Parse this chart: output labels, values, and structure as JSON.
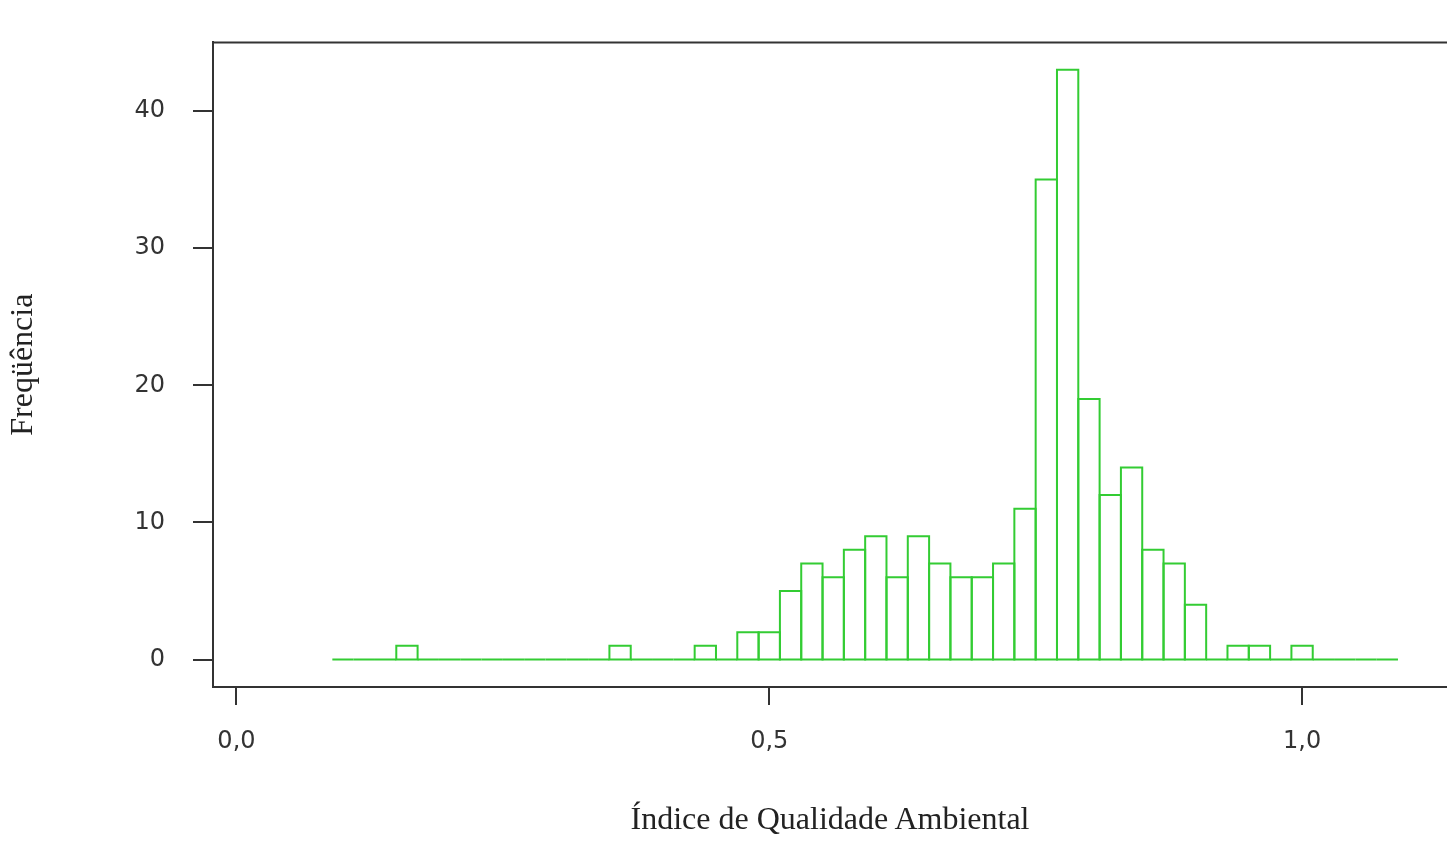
{
  "chart_data": {
    "type": "histogram",
    "xlabel": "Índice de Qualidade Ambiental",
    "ylabel": "Freqüência",
    "bins": [
      0.09,
      0.11,
      0.13,
      0.15,
      0.17,
      0.19,
      0.21,
      0.23,
      0.25,
      0.27,
      0.29,
      0.31,
      0.33,
      0.35,
      0.37,
      0.39,
      0.41,
      0.43,
      0.45,
      0.47,
      0.49,
      0.51,
      0.53,
      0.55,
      0.57,
      0.59,
      0.61,
      0.63,
      0.65,
      0.67,
      0.69,
      0.71,
      0.73,
      0.75,
      0.77,
      0.79,
      0.81,
      0.83,
      0.85,
      0.87,
      0.89,
      0.91,
      0.93,
      0.95,
      0.97,
      0.99,
      1.01,
      1.03,
      1.05,
      1.07,
      1.09
    ],
    "values": [
      0,
      0,
      0,
      1,
      0,
      0,
      0,
      0,
      0,
      0,
      0,
      0,
      0,
      1,
      0,
      0,
      0,
      1,
      0,
      2,
      2,
      5,
      7,
      6,
      8,
      9,
      6,
      9,
      7,
      6,
      6,
      7,
      11,
      35,
      43,
      19,
      12,
      14,
      8,
      7,
      4,
      0,
      1,
      1,
      0,
      1,
      0,
      0,
      0,
      0
    ],
    "color": "#33cc33",
    "xlim": [
      -0.022,
      1.136
    ],
    "xticks": [
      {
        "value": 0,
        "label": "0,0"
      },
      {
        "value": 0.5,
        "label": "0,5"
      },
      {
        "value": 1,
        "label": "1,0"
      }
    ],
    "ylim": [
      -2,
      45
    ],
    "yticks": [
      0,
      10,
      20,
      30,
      40
    ],
    "grid": false
  }
}
